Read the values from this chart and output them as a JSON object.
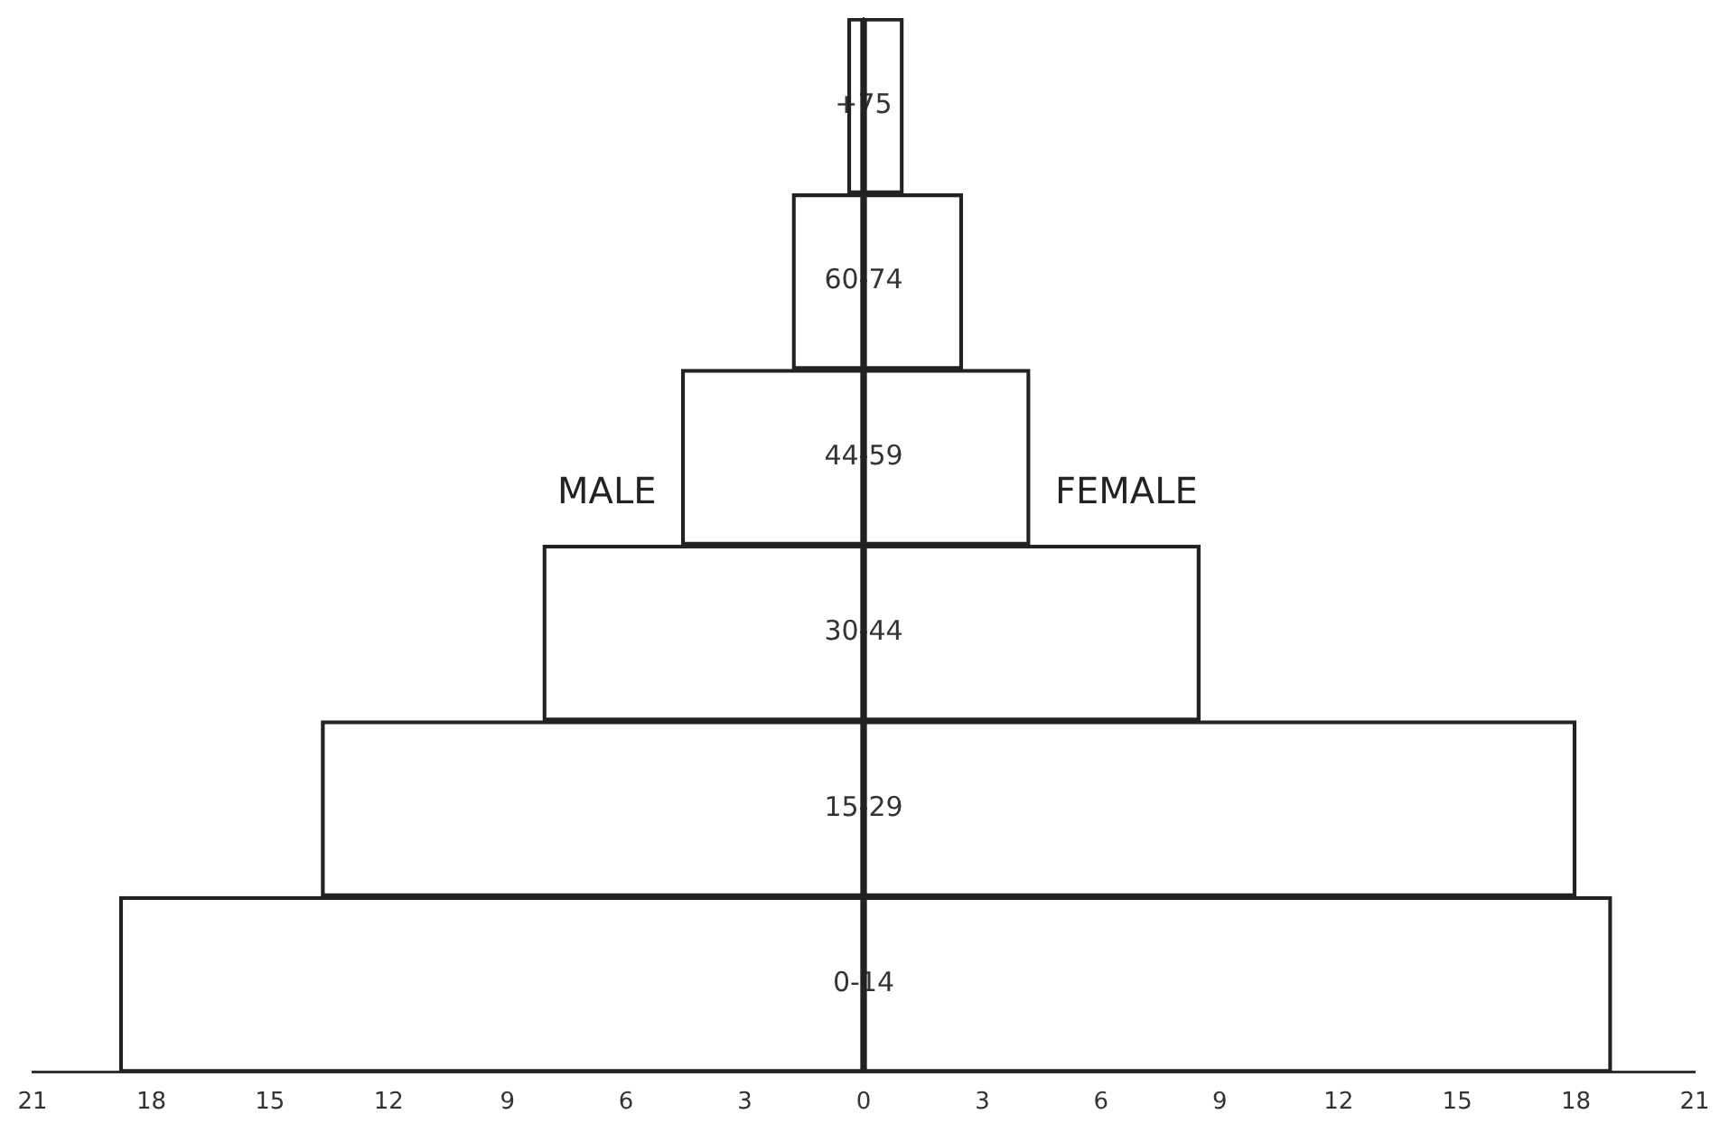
{
  "chart_data": {
    "type": "bar",
    "orientation": "horizontal",
    "stacked": true,
    "categories": [
      "+75",
      "60-74",
      "44-59",
      "30-44",
      "15-29",
      "0-14"
    ],
    "series": [
      {
        "name": "MALE",
        "color": "#222222",
        "values": [
          -0.4,
          -1.8,
          -4.6,
          -8.1,
          -13.7,
          -18.8
        ]
      },
      {
        "name": "FEMALE",
        "color": "#222222",
        "values": [
          1.0,
          2.5,
          4.2,
          8.5,
          18.0,
          18.9
        ]
      }
    ],
    "xlim": [
      -21,
      21
    ],
    "xticks": [
      {
        "value": -21,
        "label": "21"
      },
      {
        "value": -18,
        "label": "18"
      },
      {
        "value": -15,
        "label": "15"
      },
      {
        "value": -12,
        "label": "12"
      },
      {
        "value": -9,
        "label": "9"
      },
      {
        "value": -6,
        "label": "6"
      },
      {
        "value": -3,
        "label": "3"
      },
      0,
      3,
      6,
      9,
      12,
      15,
      18,
      21
    ],
    "legend": false,
    "grid": false
  }
}
